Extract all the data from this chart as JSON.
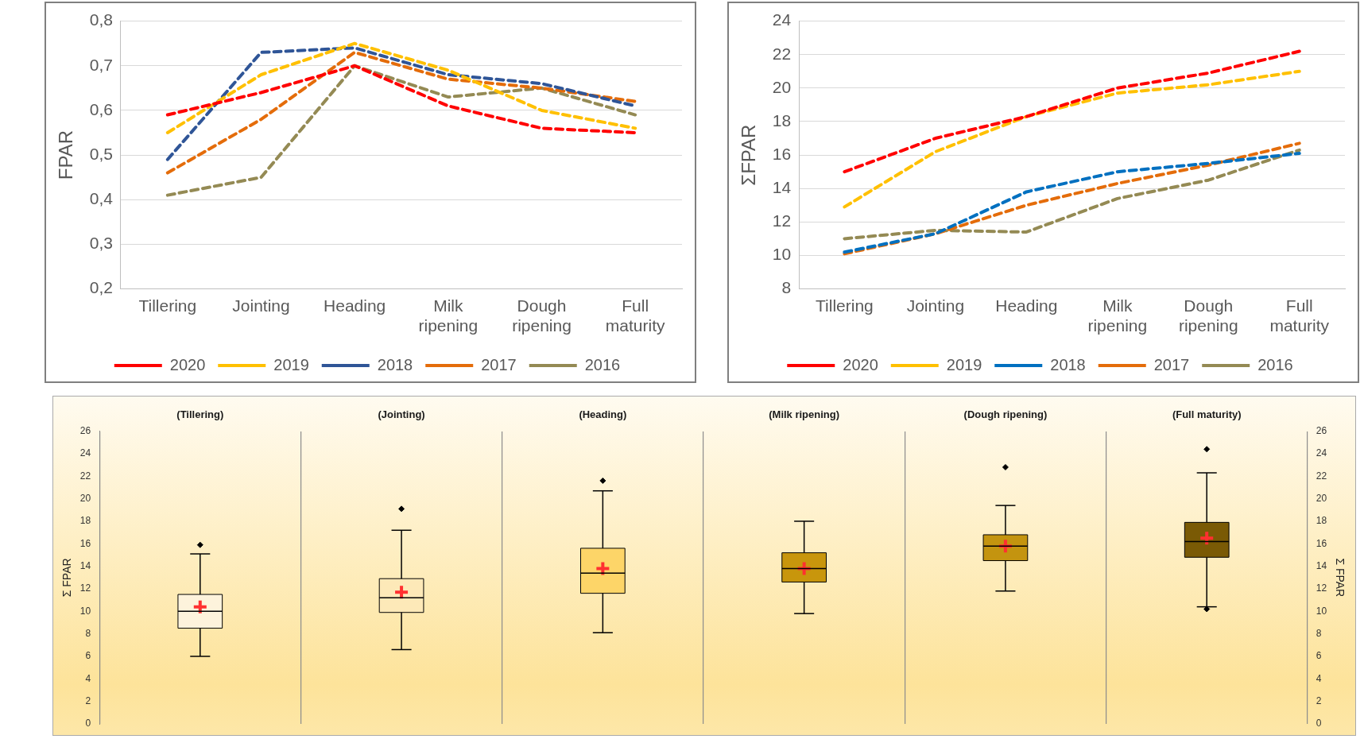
{
  "chart_data": [
    {
      "type": "line",
      "ylabel": "FPAR",
      "categories": [
        "Tillering",
        "Jointing",
        "Heading",
        "Milk ripening",
        "Dough ripening",
        "Full maturity"
      ],
      "ylim": [
        0.2,
        0.8
      ],
      "yticks": [
        {
          "value": 0.2,
          "label": "0,2"
        },
        {
          "value": 0.3,
          "label": "0,3"
        },
        {
          "value": 0.4,
          "label": "0,4"
        },
        {
          "value": 0.5,
          "label": "0,5"
        },
        {
          "value": 0.6,
          "label": "0,6"
        },
        {
          "value": 0.7,
          "label": "0,7"
        },
        {
          "value": 0.8,
          "label": "0,8"
        }
      ],
      "grid": "y",
      "legend": "bottom",
      "line_style": "dashed",
      "marker": "none",
      "series": [
        {
          "name": "2020",
          "color": "#ff0000",
          "values": [
            0.59,
            0.64,
            0.7,
            0.61,
            0.56,
            0.55
          ]
        },
        {
          "name": "2019",
          "color": "#ffc000",
          "values": [
            0.55,
            0.68,
            0.75,
            0.69,
            0.6,
            0.56
          ]
        },
        {
          "name": "2018",
          "color": "#2f5597",
          "values": [
            0.49,
            0.73,
            0.74,
            0.68,
            0.66,
            0.61
          ]
        },
        {
          "name": "2017",
          "color": "#e46c0a",
          "values": [
            0.46,
            0.58,
            0.73,
            0.67,
            0.65,
            0.62
          ]
        },
        {
          "name": "2016",
          "color": "#948a54",
          "values": [
            0.41,
            0.45,
            0.7,
            0.63,
            0.65,
            0.59
          ]
        }
      ]
    },
    {
      "type": "line",
      "ylabel": "ΣFPAR",
      "categories": [
        "Tillering",
        "Jointing",
        "Heading",
        "Milk ripening",
        "Dough ripening",
        "Full maturity"
      ],
      "ylim": [
        8,
        24
      ],
      "yticks": [
        8,
        10,
        12,
        14,
        16,
        18,
        20,
        22,
        24
      ],
      "grid": "y",
      "legend": "bottom",
      "line_style": "dashed",
      "marker": "none",
      "series": [
        {
          "name": "2020",
          "color": "#ff0000",
          "values": [
            15.0,
            17.0,
            18.3,
            20.0,
            20.9,
            22.2
          ]
        },
        {
          "name": "2019",
          "color": "#ffc000",
          "values": [
            12.9,
            16.2,
            18.3,
            19.7,
            20.2,
            21.0
          ]
        },
        {
          "name": "2018",
          "color": "#0070c0",
          "values": [
            10.2,
            11.3,
            13.8,
            15.0,
            15.5,
            16.1
          ]
        },
        {
          "name": "2017",
          "color": "#e46c0a",
          "values": [
            10.1,
            11.3,
            13.0,
            14.3,
            15.4,
            16.7
          ]
        },
        {
          "name": "2016",
          "color": "#948a54",
          "values": [
            11.0,
            11.5,
            11.4,
            13.4,
            14.5,
            16.3
          ]
        }
      ]
    },
    {
      "type": "box",
      "ylabel": "Σ FPAR",
      "y2label": "Σ FPAR",
      "categories": [
        "(Tillering)",
        "(Jointing)",
        "(Heading)",
        "(Milk ripening)",
        "(Dough ripening)",
        "(Full maturity)"
      ],
      "ylim": [
        0,
        26
      ],
      "yticks": [
        0,
        2,
        4,
        6,
        8,
        10,
        12,
        14,
        16,
        18,
        20,
        22,
        24,
        26
      ],
      "y2lim": [
        0,
        26
      ],
      "y2ticks": [
        0,
        2,
        4,
        6,
        8,
        10,
        12,
        14,
        16,
        18,
        20,
        22,
        24,
        26
      ],
      "grid": false,
      "legend": false,
      "colors": [
        "#fdf3dc",
        "#fde9b8",
        "#fdd568",
        "#c8960c",
        "#c4940f",
        "#7a5a05"
      ],
      "boxes": [
        {
          "low": 6.0,
          "q1": 8.5,
          "median": 10.0,
          "q3": 11.5,
          "high": 15.1,
          "mean": 10.4,
          "outliers": [
            15.9
          ]
        },
        {
          "low": 6.6,
          "q1": 9.9,
          "median": 11.2,
          "q3": 12.9,
          "high": 17.2,
          "mean": 11.7,
          "outliers": [
            19.1
          ]
        },
        {
          "low": 8.1,
          "q1": 11.6,
          "median": 13.4,
          "q3": 15.6,
          "high": 20.7,
          "mean": 13.8,
          "outliers": [
            21.6
          ]
        },
        {
          "low": 9.8,
          "q1": 12.6,
          "median": 13.8,
          "q3": 15.2,
          "high": 18.0,
          "mean": 13.8
        },
        {
          "low": 11.8,
          "q1": 14.5,
          "median": 15.8,
          "q3": 16.8,
          "high": 19.4,
          "mean": 15.8,
          "outliers": [
            22.8
          ]
        },
        {
          "low": 10.4,
          "q1": 14.8,
          "median": 16.2,
          "q3": 17.9,
          "high": 22.3,
          "mean": 16.5,
          "outliers": [
            24.4,
            10.2
          ]
        }
      ]
    }
  ]
}
